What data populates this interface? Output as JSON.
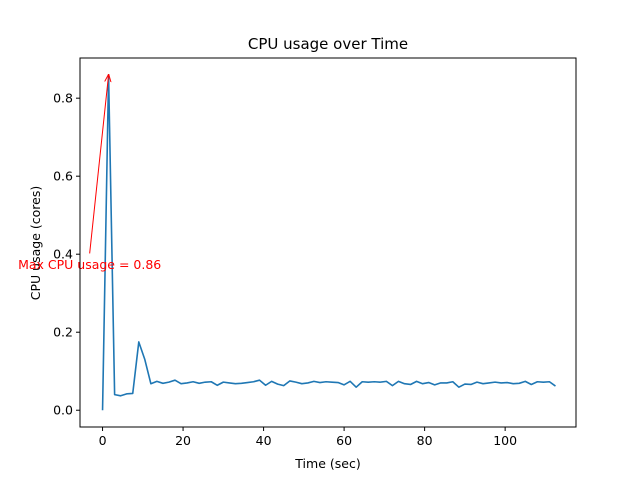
{
  "chart_data": {
    "type": "line",
    "title": "CPU usage over Time",
    "xlabel": "Time (sec)",
    "ylabel": "CPU usage (cores)",
    "xlim": [
      -5.6,
      117.6
    ],
    "ylim": [
      -0.043,
      0.903
    ],
    "xticks": [
      0,
      20,
      40,
      60,
      80,
      100
    ],
    "xtick_labels": [
      "0",
      "20",
      "40",
      "60",
      "80",
      "100"
    ],
    "yticks": [
      0.0,
      0.2,
      0.4,
      0.6,
      0.8
    ],
    "ytick_labels": [
      "0.0",
      "0.2",
      "0.4",
      "0.6",
      "0.8"
    ],
    "grid": false,
    "series": [
      {
        "color": "#1f77b4",
        "x": [
          0,
          1.5,
          3,
          4.5,
          6,
          7.5,
          9,
          10.5,
          12,
          13.5,
          15,
          16.5,
          18,
          19.5,
          21,
          22.5,
          24,
          25.5,
          27,
          28.5,
          30,
          31.5,
          33,
          34.5,
          36,
          37.5,
          39,
          40.5,
          42,
          43.5,
          45,
          46.5,
          48,
          49.5,
          51,
          52.5,
          54,
          55.5,
          57,
          58.5,
          60,
          61.5,
          63,
          64.5,
          66,
          67.5,
          69,
          70.5,
          72,
          73.5,
          75,
          76.5,
          78,
          79.5,
          81,
          82.5,
          84,
          85.5,
          87,
          88.5,
          90,
          91.5,
          93,
          94.5,
          96,
          97.5,
          99,
          100.5,
          102,
          103.5,
          105,
          106.5,
          108,
          109.5,
          111,
          112.5
        ],
        "values": [
          0.0,
          0.86,
          0.04,
          0.037,
          0.042,
          0.043,
          0.175,
          0.13,
          0.068,
          0.074,
          0.069,
          0.072,
          0.077,
          0.068,
          0.07,
          0.073,
          0.069,
          0.072,
          0.073,
          0.064,
          0.072,
          0.07,
          0.068,
          0.069,
          0.071,
          0.073,
          0.077,
          0.064,
          0.074,
          0.067,
          0.063,
          0.075,
          0.072,
          0.068,
          0.07,
          0.074,
          0.071,
          0.073,
          0.072,
          0.071,
          0.065,
          0.074,
          0.059,
          0.073,
          0.072,
          0.073,
          0.072,
          0.074,
          0.063,
          0.074,
          0.068,
          0.066,
          0.074,
          0.068,
          0.071,
          0.065,
          0.07,
          0.07,
          0.073,
          0.059,
          0.067,
          0.066,
          0.072,
          0.068,
          0.07,
          0.072,
          0.07,
          0.071,
          0.068,
          0.069,
          0.074,
          0.066,
          0.073,
          0.072,
          0.073,
          0.062
        ]
      }
    ],
    "annotations": [
      {
        "text": "Max CPU usage = 0.86",
        "color": "#ff0000",
        "arrow_to": [
          1.5,
          0.86
        ],
        "arrow_from": [
          -3.2,
          0.402
        ],
        "text_at": [
          -3.2,
          0.372
        ]
      }
    ]
  }
}
